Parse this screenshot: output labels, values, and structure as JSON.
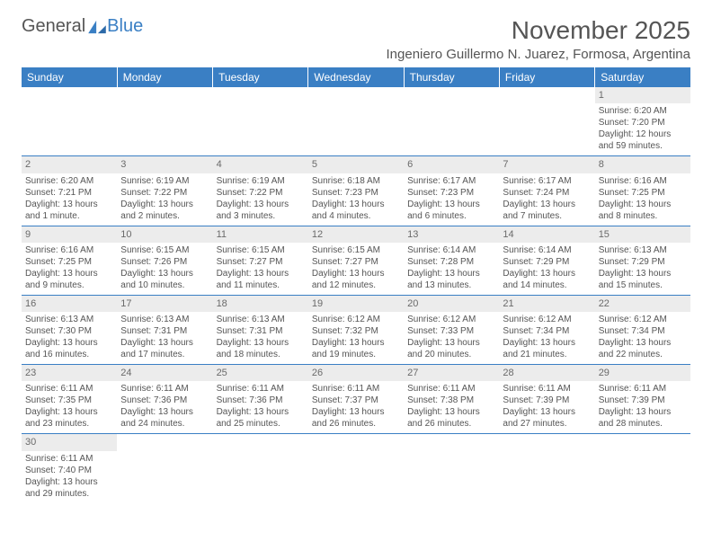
{
  "logo": {
    "text1": "General",
    "text2": "Blue"
  },
  "title": "November 2025",
  "location": "Ingeniero Guillermo N. Juarez, Formosa, Argentina",
  "colors": {
    "header_bg": "#3a7fc4",
    "header_text": "#ffffff",
    "daynum_bg": "#ececec",
    "border": "#3a7fc4",
    "text": "#555555"
  },
  "fonts": {
    "title_size": 28,
    "location_size": 15,
    "dayheader_size": 12,
    "daynum_size": 11,
    "body_size": 10
  },
  "day_headers": [
    "Sunday",
    "Monday",
    "Tuesday",
    "Wednesday",
    "Thursday",
    "Friday",
    "Saturday"
  ],
  "weeks": [
    [
      null,
      null,
      null,
      null,
      null,
      null,
      {
        "n": "1",
        "sr": "6:20 AM",
        "ss": "7:20 PM",
        "dl": "12 hours and 59 minutes."
      }
    ],
    [
      {
        "n": "2",
        "sr": "6:20 AM",
        "ss": "7:21 PM",
        "dl": "13 hours and 1 minute."
      },
      {
        "n": "3",
        "sr": "6:19 AM",
        "ss": "7:22 PM",
        "dl": "13 hours and 2 minutes."
      },
      {
        "n": "4",
        "sr": "6:19 AM",
        "ss": "7:22 PM",
        "dl": "13 hours and 3 minutes."
      },
      {
        "n": "5",
        "sr": "6:18 AM",
        "ss": "7:23 PM",
        "dl": "13 hours and 4 minutes."
      },
      {
        "n": "6",
        "sr": "6:17 AM",
        "ss": "7:23 PM",
        "dl": "13 hours and 6 minutes."
      },
      {
        "n": "7",
        "sr": "6:17 AM",
        "ss": "7:24 PM",
        "dl": "13 hours and 7 minutes."
      },
      {
        "n": "8",
        "sr": "6:16 AM",
        "ss": "7:25 PM",
        "dl": "13 hours and 8 minutes."
      }
    ],
    [
      {
        "n": "9",
        "sr": "6:16 AM",
        "ss": "7:25 PM",
        "dl": "13 hours and 9 minutes."
      },
      {
        "n": "10",
        "sr": "6:15 AM",
        "ss": "7:26 PM",
        "dl": "13 hours and 10 minutes."
      },
      {
        "n": "11",
        "sr": "6:15 AM",
        "ss": "7:27 PM",
        "dl": "13 hours and 11 minutes."
      },
      {
        "n": "12",
        "sr": "6:15 AM",
        "ss": "7:27 PM",
        "dl": "13 hours and 12 minutes."
      },
      {
        "n": "13",
        "sr": "6:14 AM",
        "ss": "7:28 PM",
        "dl": "13 hours and 13 minutes."
      },
      {
        "n": "14",
        "sr": "6:14 AM",
        "ss": "7:29 PM",
        "dl": "13 hours and 14 minutes."
      },
      {
        "n": "15",
        "sr": "6:13 AM",
        "ss": "7:29 PM",
        "dl": "13 hours and 15 minutes."
      }
    ],
    [
      {
        "n": "16",
        "sr": "6:13 AM",
        "ss": "7:30 PM",
        "dl": "13 hours and 16 minutes."
      },
      {
        "n": "17",
        "sr": "6:13 AM",
        "ss": "7:31 PM",
        "dl": "13 hours and 17 minutes."
      },
      {
        "n": "18",
        "sr": "6:13 AM",
        "ss": "7:31 PM",
        "dl": "13 hours and 18 minutes."
      },
      {
        "n": "19",
        "sr": "6:12 AM",
        "ss": "7:32 PM",
        "dl": "13 hours and 19 minutes."
      },
      {
        "n": "20",
        "sr": "6:12 AM",
        "ss": "7:33 PM",
        "dl": "13 hours and 20 minutes."
      },
      {
        "n": "21",
        "sr": "6:12 AM",
        "ss": "7:34 PM",
        "dl": "13 hours and 21 minutes."
      },
      {
        "n": "22",
        "sr": "6:12 AM",
        "ss": "7:34 PM",
        "dl": "13 hours and 22 minutes."
      }
    ],
    [
      {
        "n": "23",
        "sr": "6:11 AM",
        "ss": "7:35 PM",
        "dl": "13 hours and 23 minutes."
      },
      {
        "n": "24",
        "sr": "6:11 AM",
        "ss": "7:36 PM",
        "dl": "13 hours and 24 minutes."
      },
      {
        "n": "25",
        "sr": "6:11 AM",
        "ss": "7:36 PM",
        "dl": "13 hours and 25 minutes."
      },
      {
        "n": "26",
        "sr": "6:11 AM",
        "ss": "7:37 PM",
        "dl": "13 hours and 26 minutes."
      },
      {
        "n": "27",
        "sr": "6:11 AM",
        "ss": "7:38 PM",
        "dl": "13 hours and 26 minutes."
      },
      {
        "n": "28",
        "sr": "6:11 AM",
        "ss": "7:39 PM",
        "dl": "13 hours and 27 minutes."
      },
      {
        "n": "29",
        "sr": "6:11 AM",
        "ss": "7:39 PM",
        "dl": "13 hours and 28 minutes."
      }
    ],
    [
      {
        "n": "30",
        "sr": "6:11 AM",
        "ss": "7:40 PM",
        "dl": "13 hours and 29 minutes."
      },
      null,
      null,
      null,
      null,
      null,
      null
    ]
  ],
  "labels": {
    "sunrise": "Sunrise: ",
    "sunset": "Sunset: ",
    "daylight": "Daylight: "
  }
}
